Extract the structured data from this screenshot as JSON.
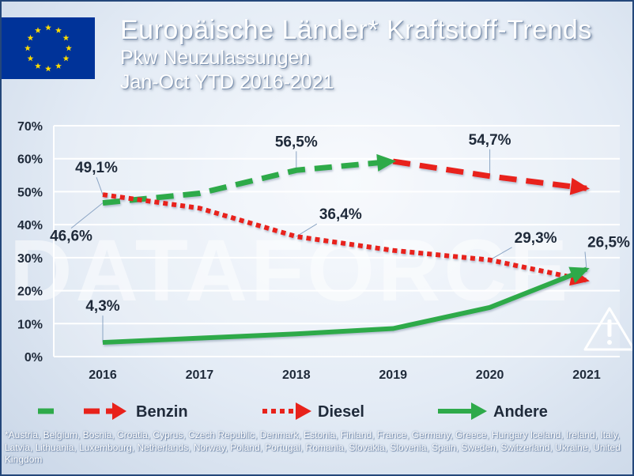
{
  "header": {
    "title": "Europäische Länder* Kraftstoff-Trends",
    "subtitle1": "Pkw Neuzulassungen",
    "subtitle2": "Jan-Oct YTD 2016-2021"
  },
  "watermark": "DATAFORCE",
  "footnote": "*Austria, Belgium, Bosnia, Croatia, Cyprus, Czech Republic, Denmark, Estonia,  Finland, France, Germany, Greece, Hungary Iceland, Ireland, Italy, Latvia, Lithuania, Luxembourg, Netherlands, Norway, Poland, Portugal, Romania, Slovakia, Slovenia, Spain, Sweden, Switzerland, Ukraine, United Kingdom",
  "warning_icon": "warning-triangle-icon",
  "chart_data": {
    "type": "line",
    "x": [
      "2016",
      "2017",
      "2018",
      "2019",
      "2020",
      "2021"
    ],
    "ylim": [
      0,
      70
    ],
    "yticks": [
      "0%",
      "10%",
      "20%",
      "30%",
      "40%",
      "50%",
      "60%",
      "70%"
    ],
    "grid": true,
    "legend_position": "bottom",
    "series": [
      {
        "name": "Benzin",
        "values": [
          46.6,
          49.5,
          56.5,
          59.2,
          54.7,
          51.0
        ],
        "color": "#e8221b",
        "color_before_2019": "#2eaa4a",
        "style": "dashed",
        "data_labels": [
          {
            "i": 0,
            "text": "46,6%"
          },
          {
            "i": 2,
            "text": "56,5%"
          },
          {
            "i": 4,
            "text": "54,7%"
          }
        ]
      },
      {
        "name": "Diesel",
        "values": [
          49.1,
          45.0,
          36.4,
          32.2,
          29.3,
          23.1
        ],
        "color": "#e8221b",
        "style": "dotted",
        "data_labels": [
          {
            "i": 0,
            "text": "49,1%"
          },
          {
            "i": 2,
            "text": "36,4%"
          },
          {
            "i": 4,
            "text": "29,3%"
          }
        ]
      },
      {
        "name": "Andere",
        "values": [
          4.3,
          5.6,
          6.9,
          8.5,
          14.9,
          26.5
        ],
        "color": "#2eaa4a",
        "style": "solid",
        "data_labels": [
          {
            "i": 0,
            "text": "4,3%"
          },
          {
            "i": 5,
            "text": "26,5%"
          }
        ]
      }
    ]
  }
}
